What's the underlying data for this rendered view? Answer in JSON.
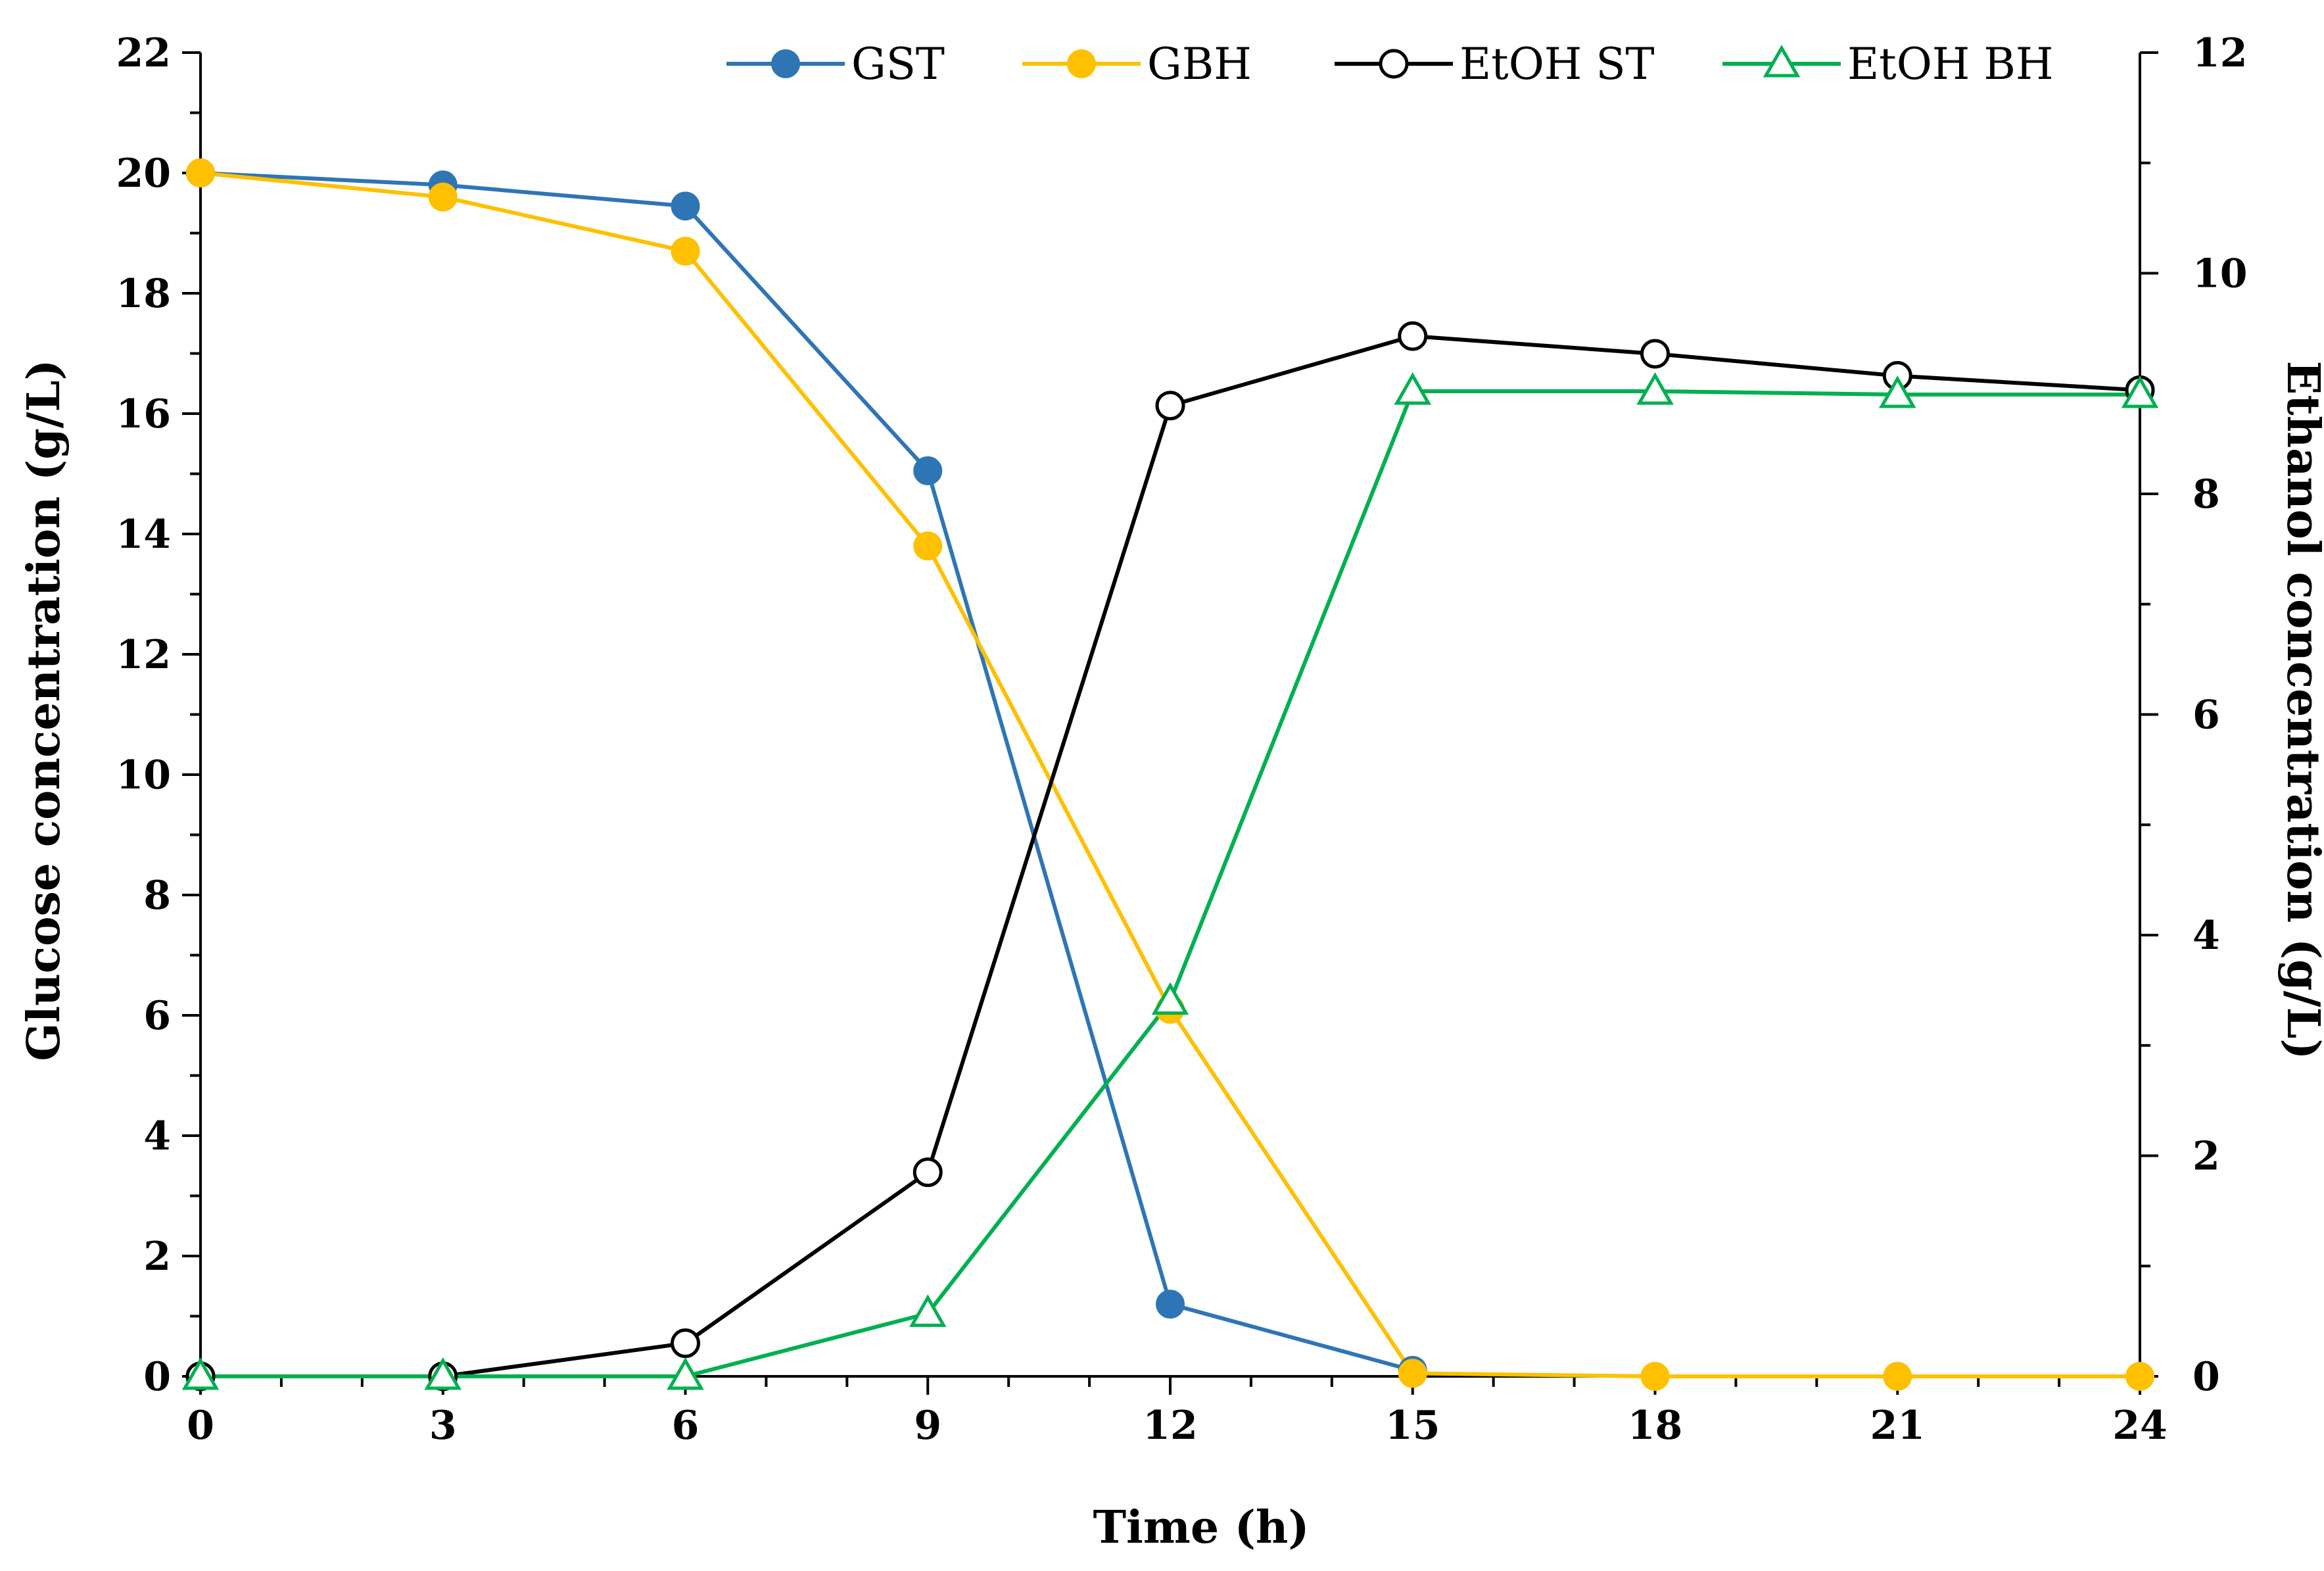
{
  "chart_data": {
    "type": "line",
    "xlabel": "Time (h)",
    "ylabel_left": "Glucose concentration (g/L)",
    "ylabel_right": "Ethanol concentration (g/L)",
    "xlim": [
      0,
      24
    ],
    "ylim_left": [
      0,
      22
    ],
    "ylim_right": [
      0,
      12
    ],
    "x_ticks": [
      0,
      3,
      6,
      9,
      12,
      15,
      18,
      21,
      24
    ],
    "y_left_ticks": [
      0,
      2,
      4,
      6,
      8,
      10,
      12,
      14,
      16,
      18,
      20,
      22
    ],
    "y_right_ticks": [
      0,
      2,
      4,
      6,
      8,
      10,
      12
    ],
    "grid": false,
    "legend_position": "top",
    "series": [
      {
        "name": "GST",
        "axis": "left",
        "color": "#2E75B6",
        "marker": "filled-circle",
        "x": [
          0,
          3,
          6,
          9,
          12,
          15
        ],
        "values": [
          20.0,
          19.8,
          19.45,
          15.05,
          1.2,
          0.1
        ]
      },
      {
        "name": "GBH",
        "axis": "left",
        "color": "#FFC000",
        "marker": "filled-circle",
        "x": [
          0,
          3,
          6,
          9,
          12,
          15,
          18,
          21,
          24
        ],
        "values": [
          20.0,
          19.6,
          18.7,
          13.8,
          6.1,
          0.05,
          0.0,
          0.0,
          0.0
        ]
      },
      {
        "name": "EtOH ST",
        "axis": "right",
        "color": "#000000",
        "marker": "open-circle",
        "x": [
          0,
          3,
          6,
          9,
          12,
          15,
          18,
          21,
          24
        ],
        "values": [
          0.0,
          0.0,
          0.3,
          1.85,
          8.8,
          9.43,
          9.27,
          9.07,
          8.94
        ]
      },
      {
        "name": "EtOH BH",
        "axis": "right",
        "color": "#00B050",
        "marker": "open-triangle",
        "x": [
          0,
          3,
          6,
          9,
          12,
          15,
          18,
          21,
          24
        ],
        "values": [
          0.0,
          0.0,
          0.0,
          0.57,
          3.4,
          8.93,
          8.93,
          8.9,
          8.9
        ]
      }
    ]
  }
}
